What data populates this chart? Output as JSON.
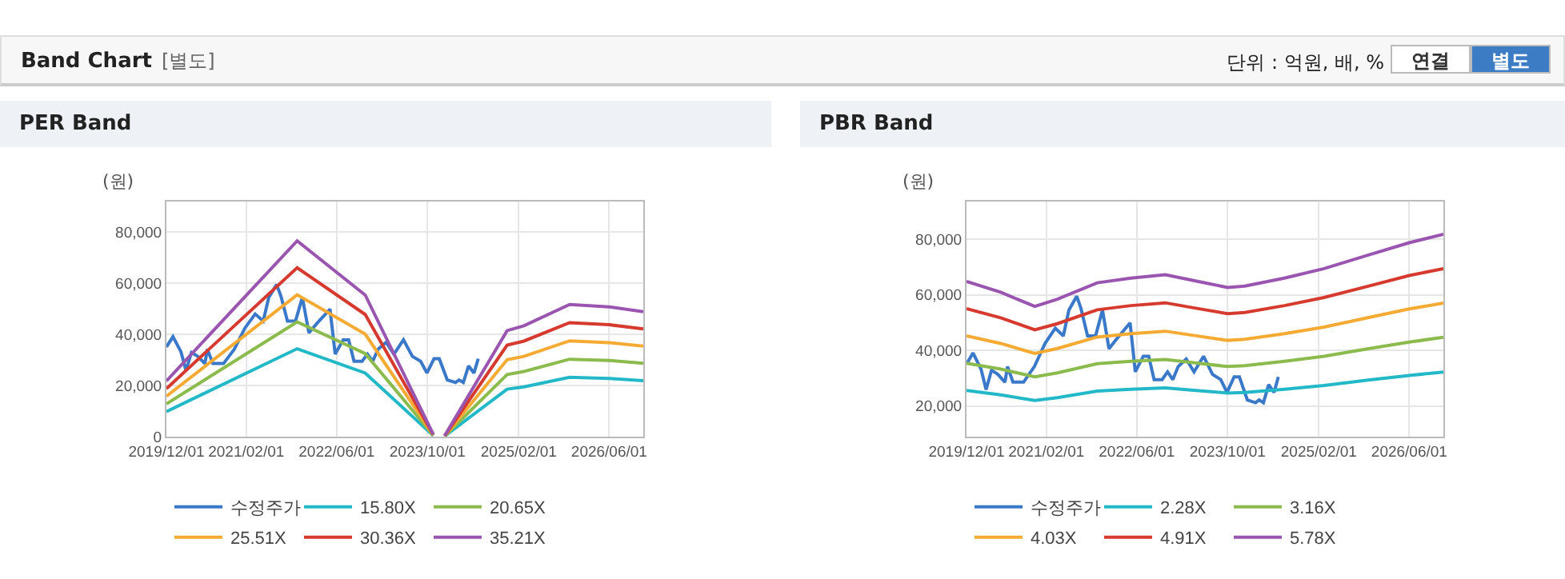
{
  "chart_data": [
    {
      "type": "other",
      "title": "Band Chart",
      "subtitle": "[별도]",
      "annotations": [
        "단위 : 억원, 배, %",
        "연결",
        "별도"
      ]
    },
    {
      "type": "line",
      "title": "PER Band",
      "ylabel": "(원)",
      "grid": true,
      "legend": "bottom",
      "marker": "none",
      "line_style": "solid",
      "x": [
        "2019-12-01",
        "2021-11-01",
        "2022-11-01",
        "2023-11-01",
        "2023-12-01",
        "2024-01-01",
        "2024-12-01",
        "2025-03-01",
        "2025-11-01",
        "2026-06-01",
        "2026-12-01"
      ],
      "xlim": [
        "2019-12-01",
        "2026-12-01"
      ],
      "xticks": [
        {
          "value": "2019-12-01",
          "label": "2019/12/01"
        },
        {
          "value": "2021-02-01",
          "label": "2021/02/01"
        },
        {
          "value": "2022-06-01",
          "label": "2022/06/01"
        },
        {
          "value": "2023-10-01",
          "label": "2023/10/01"
        },
        {
          "value": "2025-02-01",
          "label": "2025/02/01"
        },
        {
          "value": "2026-06-01",
          "label": "2026/06/01"
        }
      ],
      "ylim": [
        0,
        92000
      ],
      "yticks": [
        0,
        {
          "value": 20000,
          "label": "20,000"
        },
        {
          "value": 40000,
          "label": "40,000"
        },
        {
          "value": 60000,
          "label": "60,000"
        },
        {
          "value": 80000,
          "label": "80,000"
        }
      ],
      "series": [
        {
          "name": "수정주가",
          "color": "#3a78c9",
          "x": [
            "2019-12-01",
            "2020-01-05",
            "2020-02-17",
            "2020-03-15",
            "2020-04-13",
            "2020-05-17",
            "2020-06-24",
            "2020-07-08",
            "2020-08-06",
            "2020-10-02",
            "2020-11-29",
            "2021-01-25",
            "2021-03-21",
            "2021-05-03",
            "2021-06-02",
            "2021-07-14",
            "2021-08-06",
            "2021-09-10",
            "2021-10-23",
            "2021-11-29",
            "2022-01-03",
            "2022-02-15",
            "2022-04-26",
            "2022-05-24",
            "2022-07-06",
            "2022-08-04",
            "2022-09-02",
            "2022-10-15",
            "2022-11-13",
            "2022-12-11",
            "2023-01-09",
            "2023-02-21",
            "2023-04-04",
            "2023-05-25",
            "2023-07-12",
            "2023-08-25",
            "2023-09-28",
            "2023-11-05",
            "2023-12-03",
            "2024-01-15",
            "2024-02-28",
            "2024-03-18",
            "2024-04-10",
            "2024-05-08",
            "2024-06-06",
            "2024-06-29"
          ],
          "values": [
            35100,
            39100,
            33200,
            25900,
            32900,
            31400,
            28600,
            34200,
            28600,
            28600,
            34200,
            42500,
            48000,
            45200,
            54500,
            59500,
            55000,
            45200,
            45200,
            54500,
            40600,
            44300,
            49900,
            32300,
            37900,
            37900,
            29500,
            29500,
            32300,
            29500,
            34200,
            36900,
            32300,
            37900,
            31400,
            29500,
            24900,
            30500,
            30500,
            22200,
            21200,
            22200,
            21200,
            27700,
            24900,
            30500
          ]
        },
        {
          "name": "15.80X",
          "color": "#22b8c8",
          "values": [
            9800,
            34400,
            24900,
            400,
            null,
            200,
            18600,
            19500,
            23200,
            22800,
            21900
          ]
        },
        {
          "name": "20.65X",
          "color": "#8bbb4c",
          "values": [
            12800,
            44900,
            32500,
            500,
            null,
            200,
            24300,
            25500,
            30300,
            29800,
            28700
          ]
        },
        {
          "name": "25.51X",
          "color": "#f5aa33",
          "values": [
            15800,
            55500,
            40100,
            700,
            null,
            300,
            30100,
            31400,
            37500,
            36800,
            35400
          ]
        },
        {
          "name": "30.36X",
          "color": "#d63a2f",
          "values": [
            18800,
            66100,
            47800,
            800,
            null,
            300,
            35800,
            37400,
            44600,
            43800,
            42200
          ]
        },
        {
          "name": "35.21X",
          "color": "#9a55b0",
          "values": [
            21800,
            76600,
            55400,
            900,
            null,
            400,
            41500,
            43400,
            51700,
            50800,
            48900
          ]
        }
      ]
    },
    {
      "type": "line",
      "title": "PBR Band",
      "ylabel": "(원)",
      "grid": true,
      "legend": "bottom",
      "marker": "none",
      "line_style": "solid",
      "x": [
        "2019-12-01",
        "2020-06-01",
        "2020-12-01",
        "2021-04-01",
        "2021-11-01",
        "2022-05-01",
        "2022-11-01",
        "2023-04-01",
        "2023-10-01",
        "2024-01-01",
        "2024-08-01",
        "2025-03-01",
        "2025-11-01",
        "2026-06-01",
        "2026-12-01"
      ],
      "xlim": [
        "2019-12-01",
        "2026-12-01"
      ],
      "xticks": [
        {
          "value": "2019-12-01",
          "label": "2019/12/01"
        },
        {
          "value": "2021-02-01",
          "label": "2021/02/01"
        },
        {
          "value": "2022-06-01",
          "label": "2022/06/01"
        },
        {
          "value": "2023-10-01",
          "label": "2023/10/01"
        },
        {
          "value": "2025-02-01",
          "label": "2025/02/01"
        },
        {
          "value": "2026-06-01",
          "label": "2026/06/01"
        }
      ],
      "ylim": [
        9000,
        93500
      ],
      "yticks": [
        {
          "value": 20000,
          "label": "20,000"
        },
        {
          "value": 40000,
          "label": "40,000"
        },
        {
          "value": 60000,
          "label": "60,000"
        },
        {
          "value": 80000,
          "label": "80,000"
        }
      ],
      "series": [
        {
          "name": "수정주가",
          "color": "#3a78c9",
          "x": [
            "2019-12-01",
            "2020-01-05",
            "2020-02-17",
            "2020-03-15",
            "2020-04-13",
            "2020-05-17",
            "2020-06-24",
            "2020-07-08",
            "2020-08-06",
            "2020-10-02",
            "2020-11-29",
            "2021-01-25",
            "2021-03-21",
            "2021-05-03",
            "2021-06-02",
            "2021-07-14",
            "2021-08-06",
            "2021-09-10",
            "2021-10-23",
            "2021-11-29",
            "2022-01-03",
            "2022-02-15",
            "2022-04-26",
            "2022-05-24",
            "2022-07-06",
            "2022-08-04",
            "2022-09-02",
            "2022-10-15",
            "2022-11-13",
            "2022-12-11",
            "2023-01-09",
            "2023-02-21",
            "2023-04-04",
            "2023-05-25",
            "2023-07-12",
            "2023-08-25",
            "2023-09-28",
            "2023-11-05",
            "2023-12-03",
            "2024-01-15",
            "2024-02-28",
            "2024-03-18",
            "2024-04-10",
            "2024-05-08",
            "2024-06-06",
            "2024-06-29"
          ],
          "values": [
            35100,
            39100,
            33200,
            25900,
            32900,
            31400,
            28600,
            34200,
            28600,
            28600,
            34200,
            42500,
            48000,
            45200,
            54500,
            59500,
            55000,
            45200,
            45200,
            54500,
            40600,
            44300,
            49900,
            32300,
            37900,
            37900,
            29500,
            29500,
            32300,
            29500,
            34200,
            36900,
            32300,
            37900,
            31400,
            29500,
            24900,
            30500,
            30500,
            22200,
            21200,
            22200,
            21200,
            27700,
            24900,
            30500
          ]
        },
        {
          "name": "2.28X",
          "color": "#22b8c8",
          "values": [
            25600,
            24000,
            22000,
            23000,
            25400,
            26000,
            26500,
            25700,
            24700,
            24900,
            26000,
            27400,
            29400,
            31000,
            32200
          ]
        },
        {
          "name": "3.16X",
          "color": "#8bbb4c",
          "values": [
            35400,
            33300,
            30500,
            31900,
            35200,
            36100,
            36700,
            35600,
            34200,
            34500,
            36100,
            37900,
            40700,
            43000,
            44700
          ]
        },
        {
          "name": "4.03X",
          "color": "#f5aa33",
          "values": [
            45200,
            42500,
            38900,
            40700,
            44800,
            46000,
            46900,
            45400,
            43600,
            44000,
            46000,
            48400,
            51900,
            54900,
            57000
          ]
        },
        {
          "name": "4.91X",
          "color": "#d63a2f",
          "values": [
            55000,
            51700,
            47400,
            49600,
            54600,
            56100,
            57100,
            55300,
            53200,
            53600,
            56100,
            59000,
            63200,
            66900,
            69400
          ]
        },
        {
          "name": "5.78X",
          "color": "#9a55b0",
          "values": [
            64800,
            60900,
            55800,
            58400,
            64300,
            66000,
            67200,
            65100,
            62600,
            63100,
            66000,
            69400,
            74400,
            78700,
            81700
          ]
        }
      ]
    }
  ]
}
